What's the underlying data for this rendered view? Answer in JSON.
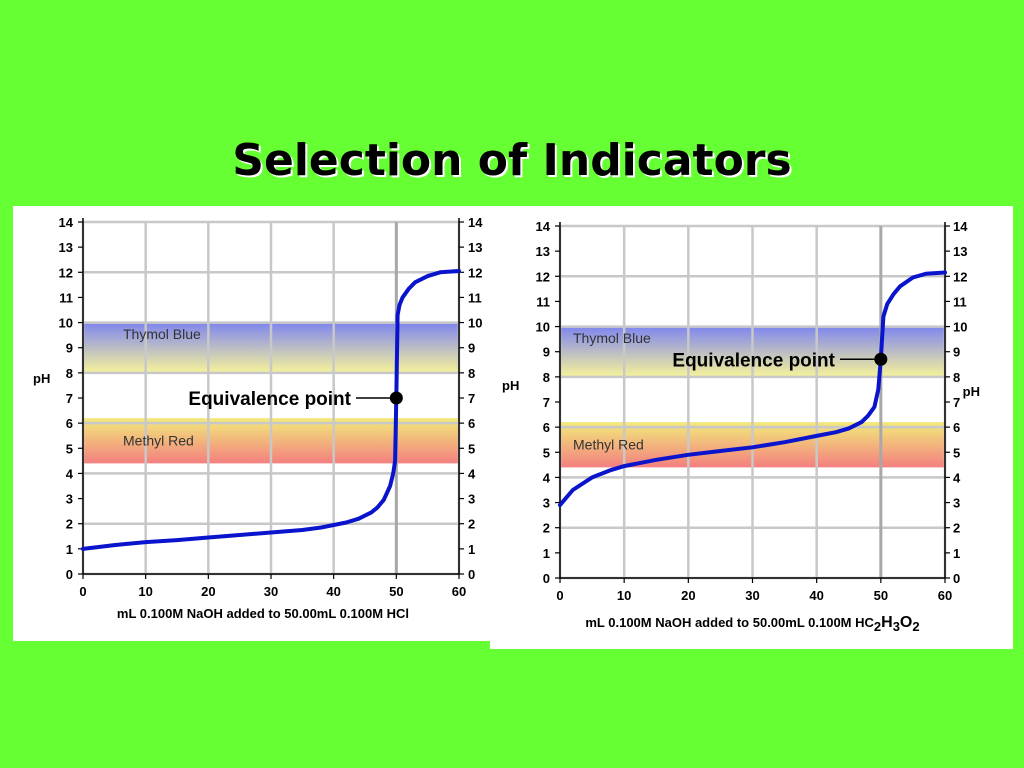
{
  "slide": {
    "title": "Selection of Indicators"
  },
  "chart_data": [
    {
      "type": "line",
      "xlabel": "mL 0.100M NaOH added to 50.00mL 0.100M HCl",
      "ylabel": "pH",
      "xlim": [
        0,
        60
      ],
      "ylim": [
        0,
        14
      ],
      "xticks": [
        0,
        10,
        20,
        30,
        40,
        50,
        60
      ],
      "yticks": [
        0,
        1,
        2,
        3,
        4,
        5,
        6,
        7,
        8,
        9,
        10,
        11,
        12,
        13,
        14
      ],
      "grid": true,
      "series": [
        {
          "x": [
            0,
            5,
            10,
            15,
            20,
            25,
            30,
            35,
            38,
            40,
            42,
            44,
            46,
            47,
            48,
            49,
            49.5,
            49.8,
            50,
            50.2,
            50.5,
            51,
            52,
            53,
            55,
            57,
            60
          ],
          "y": [
            1.0,
            1.15,
            1.27,
            1.35,
            1.45,
            1.55,
            1.65,
            1.75,
            1.85,
            1.95,
            2.05,
            2.2,
            2.45,
            2.65,
            2.95,
            3.5,
            4.0,
            4.5,
            7.0,
            10.3,
            10.7,
            11.0,
            11.35,
            11.6,
            11.85,
            12.0,
            12.05
          ],
          "color": "#0a14cc"
        }
      ],
      "indicators": [
        {
          "name": "Thymol Blue",
          "range": [
            8.0,
            10.0
          ],
          "top_color": "#7f86ef",
          "bottom_color": "#f7f39a"
        },
        {
          "name": "Methyl Red",
          "range": [
            4.4,
            6.2
          ],
          "top_color": "#f2ea7a",
          "bottom_color": "#f37f7f"
        }
      ],
      "annotation": {
        "label": "Equivalence point",
        "x": 50,
        "y": 7.0
      }
    },
    {
      "type": "line",
      "xlabel_parts": [
        "mL 0.100M NaOH added to 50.00mL 0.100M HC",
        "2",
        "H",
        "3",
        "O",
        "2"
      ],
      "ylabel": "pH",
      "xlim": [
        0,
        60
      ],
      "ylim": [
        0,
        14
      ],
      "xticks": [
        0,
        10,
        20,
        30,
        40,
        50,
        60
      ],
      "yticks": [
        0,
        1,
        2,
        3,
        4,
        5,
        6,
        7,
        8,
        9,
        10,
        11,
        12,
        13,
        14
      ],
      "grid": true,
      "series": [
        {
          "x": [
            0,
            2,
            5,
            8,
            10,
            15,
            20,
            25,
            30,
            35,
            40,
            43,
            45,
            47,
            48,
            49,
            49.6,
            50,
            50.4,
            51,
            52,
            53,
            55,
            57,
            60
          ],
          "y": [
            2.9,
            3.5,
            4.0,
            4.3,
            4.45,
            4.7,
            4.9,
            5.05,
            5.2,
            5.4,
            5.65,
            5.8,
            5.95,
            6.2,
            6.45,
            6.8,
            7.5,
            8.7,
            10.4,
            10.9,
            11.3,
            11.6,
            11.95,
            12.1,
            12.15
          ],
          "color": "#0a14cc"
        }
      ],
      "indicators": [
        {
          "name": "Thymol Blue",
          "range": [
            8.0,
            10.0
          ],
          "top_color": "#7f86ef",
          "bottom_color": "#f7f39a"
        },
        {
          "name": "Methyl Red",
          "range": [
            4.4,
            6.2
          ],
          "top_color": "#f2ea7a",
          "bottom_color": "#f37f7f"
        }
      ],
      "annotation": {
        "label": "Equivalence point",
        "x": 50,
        "y": 8.7
      }
    }
  ]
}
